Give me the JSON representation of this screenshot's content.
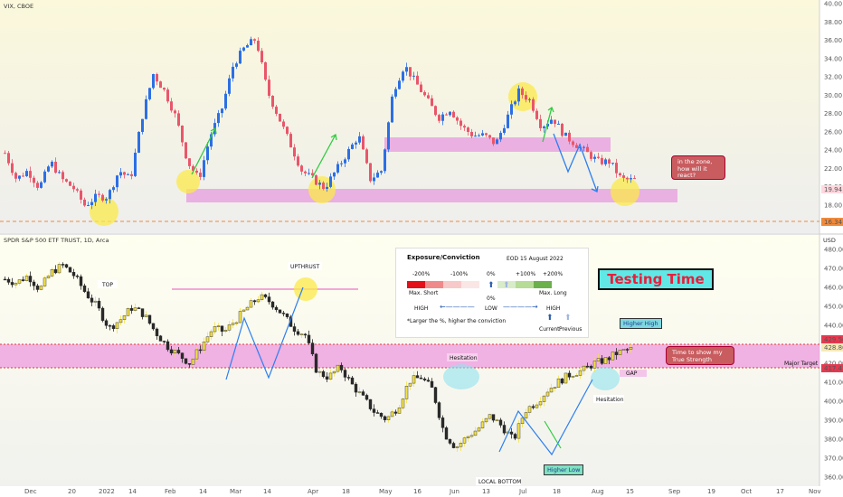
{
  "top_panel": {
    "title": "VIX, CBOE",
    "price_ticks": [
      "40.00",
      "38.00",
      "36.00",
      "34.00",
      "32.00",
      "30.00",
      "28.00",
      "26.00",
      "24.00",
      "22.00",
      "20.00",
      "18.00",
      "16.00"
    ],
    "last_price_label": "19.94",
    "ref_price_label": "16.34",
    "callout_text": [
      "in the zone,",
      "how will it",
      "react?"
    ]
  },
  "bottom_panel": {
    "title": "SPDR S&P 500 ETF TRUST, 1D, Arca",
    "currency": "USD",
    "price_ticks": [
      "480.00",
      "470.00",
      "460.00",
      "450.00",
      "440.00",
      "430.00",
      "420.00",
      "410.00",
      "400.00",
      "390.00",
      "380.00",
      "370.00",
      "360.00"
    ],
    "labels": {
      "top": "TOP",
      "upthrust": "UPTHRUST",
      "hesitation1": "Hesitation",
      "hesitation2": "Hesitation",
      "local_bottom": "LOCAL BOTTOM",
      "higher_low": "Higher Low",
      "higher_high": "Higher High",
      "gap": "GAP",
      "major_target": "Major Target",
      "testing_time": "Testing Time",
      "callout": [
        "Time to show my",
        "True Strength"
      ]
    },
    "price_labels": {
      "p1": "429.56",
      "p2": "428.86",
      "p3": "417.41"
    }
  },
  "x_axis_ticks": [
    "Dec",
    "20",
    "2022",
    "14",
    "Feb",
    "14",
    "Mar",
    "14",
    "Apr",
    "18",
    "May",
    "16",
    "Jun",
    "13",
    "Jul",
    "18",
    "Aug",
    "15",
    "Sep",
    "19",
    "Oct",
    "17",
    "Nov"
  ],
  "legend": {
    "title": "Exposure/Conviction",
    "date": "EOD 15 August 2022",
    "scale_labels": [
      "-200%",
      "-100%",
      "0%",
      "+100%",
      "+200%"
    ],
    "left_label": "Max. Short",
    "right_label": "Max. Long",
    "zero_label": "0%",
    "high_left": "HIGH",
    "low": "LOW",
    "high_right": "HIGH",
    "footnote": "*Larger the %, higher the conviction",
    "current": "Current",
    "previous": "Previous",
    "colors": [
      "#e3101a",
      "#f08a8a",
      "#f8c9c9",
      "#fbe6e6",
      "#ffffff",
      "#d9ecc8",
      "#b6dc96",
      "#6cb04b"
    ]
  },
  "chart_data": [
    {
      "type": "candlestick",
      "title": "VIX, CBOE",
      "ylim": [
        15,
        40
      ],
      "zones": [
        {
          "from": 18.5,
          "to": 19.8
        },
        {
          "from": 24.0,
          "to": 25.4
        }
      ],
      "reference_line": 16.34,
      "last": 19.94,
      "x": [
        "Dec",
        "2022",
        "Feb",
        "Mar",
        "Apr",
        "May",
        "Jun",
        "Jul",
        "Aug",
        "Sep",
        "Oct",
        "Nov"
      ],
      "path": [
        23,
        20,
        21,
        19,
        22,
        20,
        19,
        17,
        18,
        18,
        21,
        20,
        27,
        32,
        30,
        27,
        22,
        20,
        25,
        28,
        33,
        35,
        36,
        30,
        27,
        24,
        21,
        20,
        19,
        21,
        23,
        25,
        20,
        21,
        30,
        33,
        31,
        29,
        27,
        28,
        26,
        25,
        25,
        24,
        27,
        30,
        29,
        26,
        27,
        25,
        24,
        23,
        22,
        22,
        20,
        19.9
      ]
    },
    {
      "type": "candlestick",
      "title": "SPDR S&P 500 ETF TRUST, 1D, Arca",
      "ylim": [
        355,
        485
      ],
      "zones": [
        {
          "from": 417.4,
          "to": 429.6
        }
      ],
      "levels": [
        429.56,
        428.86,
        417.41
      ],
      "x": [
        "Dec",
        "2022",
        "Feb",
        "Mar",
        "Apr",
        "May",
        "Jun",
        "Jul",
        "Aug",
        "Sep",
        "Oct",
        "Nov"
      ],
      "path": [
        468,
        466,
        470,
        462,
        472,
        476,
        470,
        460,
        452,
        440,
        445,
        452,
        448,
        438,
        430,
        425,
        420,
        430,
        440,
        438,
        445,
        452,
        458,
        455,
        448,
        440,
        436,
        415,
        412,
        418,
        408,
        400,
        392,
        388,
        395,
        410,
        412,
        405,
        380,
        372,
        378,
        383,
        390,
        384,
        376,
        393,
        398,
        405,
        410,
        414,
        416,
        420,
        422,
        426,
        428
      ]
    }
  ]
}
